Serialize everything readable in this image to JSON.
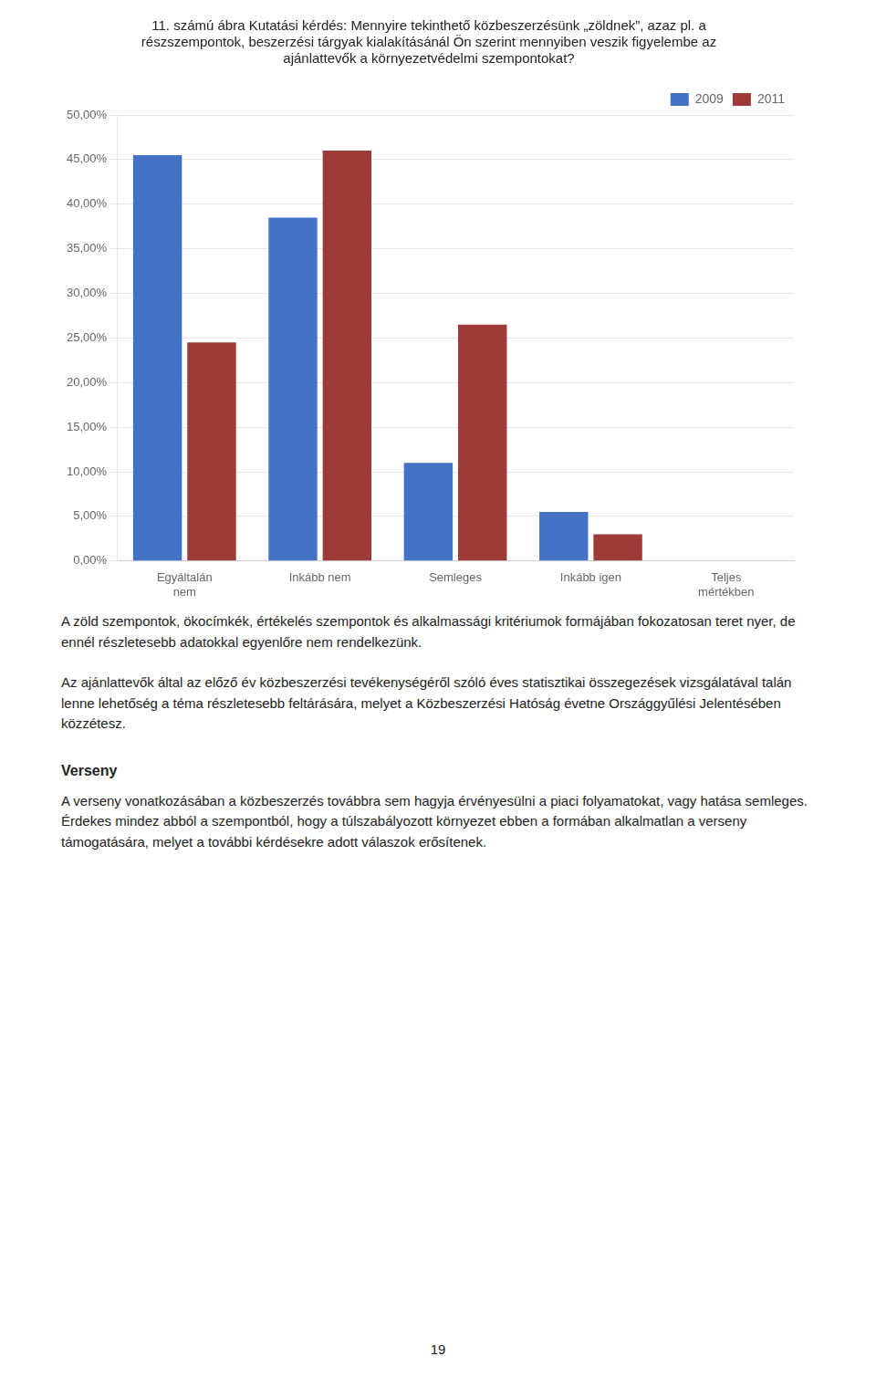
{
  "chart_data": {
    "type": "bar",
    "title": "11. számú ábra Kutatási kérdés: Mennyire tekinthető közbeszerzésünk „zöldnek”, azaz pl. a\nrészszempontok, beszerzési tárgyak kialakításánál Ön szerint mennyiben veszik figyelembe az\najánlattevők a környezetvédelmi szempontokat?",
    "categories": [
      "Egyáltalán\nnem",
      "Inkább nem",
      "Semleges",
      "Inkább igen",
      "Teljes\nmértékben"
    ],
    "series": [
      {
        "name": "2009",
        "color": "#4472C4",
        "values": [
          0.455,
          0.385,
          0.11,
          0.055,
          0.0
        ]
      },
      {
        "name": "2011",
        "color": "#9E3B38",
        "values": [
          0.245,
          0.46,
          0.265,
          0.03,
          0.0
        ]
      }
    ],
    "ylim": [
      0,
      0.5
    ],
    "yticks": [
      {
        "value": 0.0,
        "label": "0,00%"
      },
      {
        "value": 0.05,
        "label": "5,00%"
      },
      {
        "value": 0.1,
        "label": "10,00%"
      },
      {
        "value": 0.15,
        "label": "15,00%"
      },
      {
        "value": 0.2,
        "label": "20,00%"
      },
      {
        "value": 0.25,
        "label": "25,00%"
      },
      {
        "value": 0.3,
        "label": "30,00%"
      },
      {
        "value": 0.35,
        "label": "35,00%"
      },
      {
        "value": 0.4,
        "label": "40,00%"
      },
      {
        "value": 0.45,
        "label": "45,00%"
      },
      {
        "value": 0.5,
        "label": "50,00%"
      }
    ],
    "grid": true,
    "legend": "upper right",
    "annotations": [
      "A zöld szempontok, ökocímkék, értékelés szempontok és alkalmassági kritériumok formájában fokozatosan teret nyer, de ennél részletesebb adatokkal egyenlőre nem rendelkezünk.",
      "Az ajánlattevők által az előző év közbeszerzési tevékenységéről szóló éves statisztikai összegezések vizsgálatával talán lenne lehetőség a téma részletesebb feltárására, melyet a Közbeszerzési Hatóság évetne Országgyűlési Jelentésében közzétesz.",
      "Verseny",
      "A verseny vonatkozásában a közbeszerzés továbbra sem hagyja érvényesülni a piaci folyamatokat, vagy hatása semleges. Érdekes mindez abból a szempontból, hogy a túlszabályozott környezet ebben a formában alkalmatlan a verseny támogatására, melyet a további kérdésekre adott válaszok erősítenek.",
      "19"
    ]
  }
}
